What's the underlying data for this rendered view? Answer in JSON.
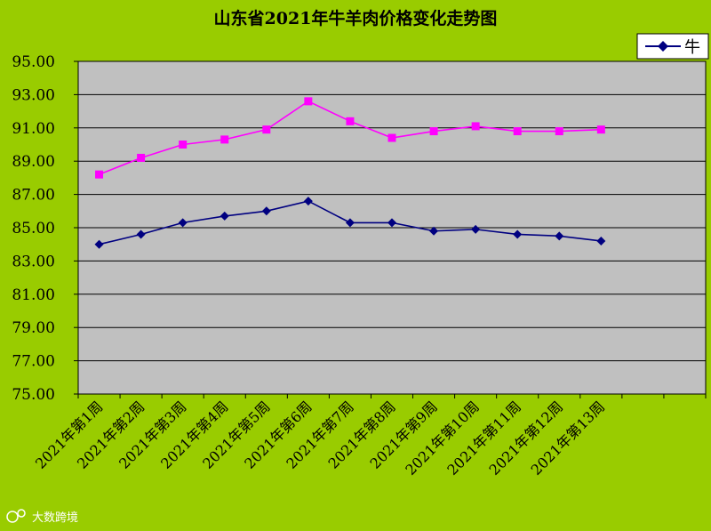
{
  "chart_data": {
    "type": "line",
    "title": "山东省2021年牛羊肉价格变化走势图",
    "categories": [
      "2021年第1周",
      "2021年第2周",
      "2021年第3周",
      "2021年第4周",
      "2021年第5周",
      "2021年第6周",
      "2021年第7周",
      "2021年第8周",
      "2021年第9周",
      "2021年第10周",
      "2021年第11周",
      "2021年第12周",
      "2021年第13周"
    ],
    "ylim": [
      75,
      95
    ],
    "yticks": [
      "95.00",
      "93.00",
      "91.00",
      "89.00",
      "87.00",
      "85.00",
      "83.00",
      "81.00",
      "79.00",
      "77.00",
      "75.00"
    ],
    "grid": true,
    "legend_position": "top-right",
    "series": [
      {
        "name": "牛",
        "color": "#000080",
        "marker": "diamond",
        "values": [
          84.0,
          84.6,
          85.3,
          85.7,
          86.0,
          86.6,
          85.3,
          85.3,
          84.8,
          84.9,
          84.6,
          84.5,
          84.2
        ]
      },
      {
        "color": "#FF00FF",
        "marker": "square",
        "values": [
          88.2,
          89.2,
          90.0,
          90.3,
          90.9,
          92.6,
          91.4,
          90.4,
          90.8,
          91.1,
          90.8,
          90.8,
          90.9
        ]
      }
    ]
  },
  "watermark": "大数跨境"
}
